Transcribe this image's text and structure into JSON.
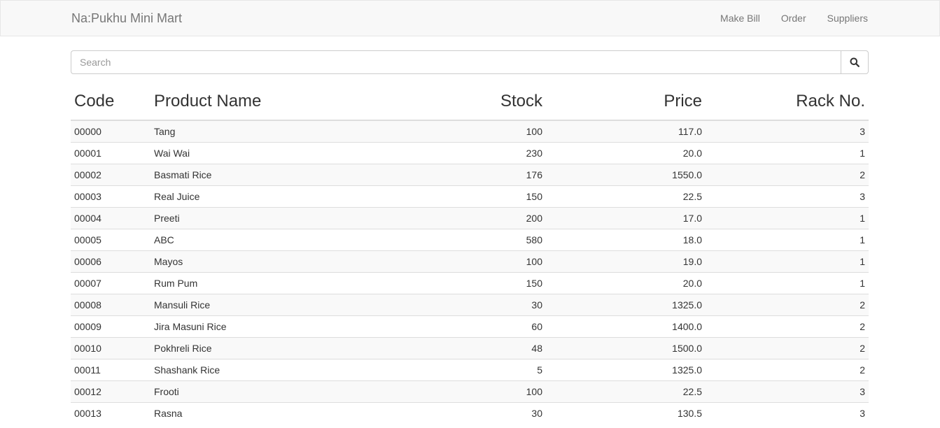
{
  "navbar": {
    "brand": "Na:Pukhu Mini Mart",
    "links": [
      {
        "label": "Make Bill"
      },
      {
        "label": "Order"
      },
      {
        "label": "Suppliers"
      }
    ]
  },
  "search": {
    "placeholder": "Search",
    "value": "",
    "icon": "search-icon"
  },
  "table": {
    "headers": {
      "code": "Code",
      "name": "Product Name",
      "stock": "Stock",
      "price": "Price",
      "rack": "Rack No."
    },
    "rows": [
      {
        "code": "00000",
        "name": "Tang",
        "stock": "100",
        "price": "117.0",
        "rack": "3"
      },
      {
        "code": "00001",
        "name": "Wai Wai",
        "stock": "230",
        "price": "20.0",
        "rack": "1"
      },
      {
        "code": "00002",
        "name": "Basmati Rice",
        "stock": "176",
        "price": "1550.0",
        "rack": "2"
      },
      {
        "code": "00003",
        "name": "Real Juice",
        "stock": "150",
        "price": "22.5",
        "rack": "3"
      },
      {
        "code": "00004",
        "name": "Preeti",
        "stock": "200",
        "price": "17.0",
        "rack": "1"
      },
      {
        "code": "00005",
        "name": "ABC",
        "stock": "580",
        "price": "18.0",
        "rack": "1"
      },
      {
        "code": "00006",
        "name": "Mayos",
        "stock": "100",
        "price": "19.0",
        "rack": "1"
      },
      {
        "code": "00007",
        "name": "Rum Pum",
        "stock": "150",
        "price": "20.0",
        "rack": "1"
      },
      {
        "code": "00008",
        "name": "Mansuli Rice",
        "stock": "30",
        "price": "1325.0",
        "rack": "2"
      },
      {
        "code": "00009",
        "name": "Jira Masuni Rice",
        "stock": "60",
        "price": "1400.0",
        "rack": "2"
      },
      {
        "code": "00010",
        "name": "Pokhreli Rice",
        "stock": "48",
        "price": "1500.0",
        "rack": "2"
      },
      {
        "code": "00011",
        "name": "Shashank Rice",
        "stock": "5",
        "price": "1325.0",
        "rack": "2"
      },
      {
        "code": "00012",
        "name": "Frooti",
        "stock": "100",
        "price": "22.5",
        "rack": "3"
      },
      {
        "code": "00013",
        "name": "Rasna",
        "stock": "30",
        "price": "130.5",
        "rack": "3"
      }
    ]
  }
}
